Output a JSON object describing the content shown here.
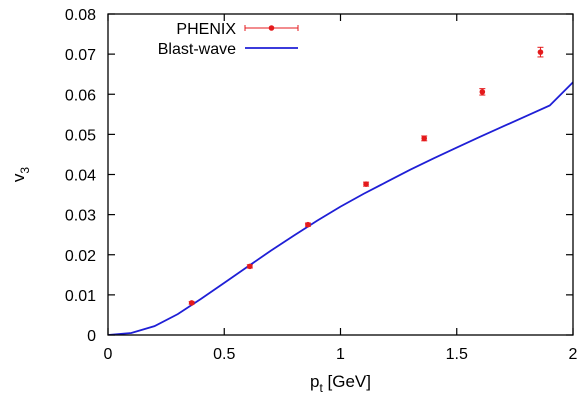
{
  "chart_data": {
    "type": "scatter",
    "xlabel": "p",
    "xlabel_sub": "t",
    "xlabel_unit": " [GeV]",
    "ylabel": "v",
    "ylabel_sub": "3",
    "xlim": [
      0,
      2
    ],
    "ylim": [
      0,
      0.08
    ],
    "x_ticks": [
      0,
      0.5,
      1,
      1.5,
      2
    ],
    "x_tick_labels": [
      "0",
      "0.5",
      "1",
      "1.5",
      "2"
    ],
    "y_ticks": [
      0,
      0.01,
      0.02,
      0.03,
      0.04,
      0.05,
      0.06,
      0.07,
      0.08
    ],
    "y_tick_labels": [
      "0",
      "0.01",
      "0.02",
      "0.03",
      "0.04",
      "0.05",
      "0.06",
      "0.07",
      "0.08"
    ],
    "grid": false,
    "legend_position": "top-left",
    "series": [
      {
        "name": "PHENIX",
        "kind": "points-with-errors",
        "color": "#e41a1c",
        "x": [
          0.36,
          0.61,
          0.86,
          1.11,
          1.36,
          1.61,
          1.86
        ],
        "y": [
          0.008,
          0.0171,
          0.0275,
          0.0376,
          0.049,
          0.0606,
          0.0705
        ],
        "yerr": [
          0.0003,
          0.0004,
          0.0004,
          0.0005,
          0.0006,
          0.0008,
          0.0012
        ]
      },
      {
        "name": "Blast-wave",
        "kind": "line",
        "color": "#1f1fd6",
        "x": [
          0,
          0.1,
          0.2,
          0.3,
          0.4,
          0.5,
          0.6,
          0.7,
          0.8,
          0.9,
          1.0,
          1.1,
          1.2,
          1.3,
          1.4,
          1.5,
          1.6,
          1.7,
          1.8,
          1.9,
          2.0
        ],
        "y": [
          0,
          0.0005,
          0.0022,
          0.0052,
          0.009,
          0.013,
          0.017,
          0.021,
          0.0248,
          0.0285,
          0.032,
          0.0352,
          0.0382,
          0.0412,
          0.044,
          0.0467,
          0.0494,
          0.052,
          0.0546,
          0.0572,
          0.063
        ]
      }
    ]
  }
}
